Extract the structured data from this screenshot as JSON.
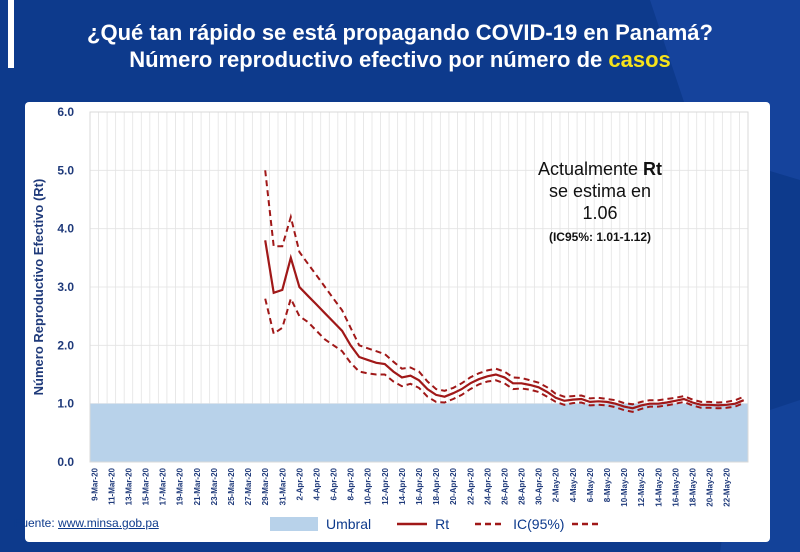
{
  "title_line1": "¿Qué tan rápido se está propagando COVID-19  en Panamá?",
  "title_line2_main": "Número reproductivo efectivo por número de",
  "title_line2_highlight": "casos",
  "annotation": {
    "line1": "Actualmente",
    "bold": "Rt",
    "line2": "se estima en",
    "value": "1.06",
    "ci": "(IC95%: 1.01-1.12)"
  },
  "source_label": "Fuente:",
  "source_link": "www.minsa.gob.pa",
  "colors": {
    "background": "#0d3a8c",
    "umbral": "#b8d2ea",
    "rt": "#a01818",
    "text": "#1f3a7a",
    "highlight": "#f5e21a"
  },
  "chart_data": {
    "type": "line",
    "ylabel": "Número Reproductivo Efectivo (Rt)",
    "ylim": [
      0,
      6
    ],
    "yticks": [
      "0.0",
      "1.0",
      "2.0",
      "3.0",
      "4.0",
      "5.0",
      "6.0"
    ],
    "grid": true,
    "legend_position": "bottom",
    "x_labels": [
      "9-Mar-20",
      "11-Mar-20",
      "13-Mar-20",
      "15-Mar-20",
      "17-Mar-20",
      "19-Mar-20",
      "21-Mar-20",
      "23-Mar-20",
      "25-Mar-20",
      "27-Mar-20",
      "29-Mar-20",
      "31-Mar-20",
      "2-Apr-20",
      "4-Apr-20",
      "6-Apr-20",
      "8-Apr-20",
      "10-Apr-20",
      "12-Apr-20",
      "14-Apr-20",
      "16-Apr-20",
      "18-Apr-20",
      "20-Apr-20",
      "22-Apr-20",
      "24-Apr-20",
      "26-Apr-20",
      "28-Apr-20",
      "30-Apr-20",
      "2-May-20",
      "4-May-20",
      "6-May-20",
      "8-May-20",
      "10-May-20",
      "12-May-20",
      "14-May-20",
      "16-May-20",
      "18-May-20",
      "20-May-20",
      "22-May-20"
    ],
    "umbral": 1.0,
    "rt_points": [
      [
        20,
        3.8
      ],
      [
        21,
        2.9
      ],
      [
        22,
        2.95
      ],
      [
        23,
        3.5
      ],
      [
        24,
        3.0
      ],
      [
        25,
        2.85
      ],
      [
        26,
        2.7
      ],
      [
        27,
        2.55
      ],
      [
        28,
        2.4
      ],
      [
        29,
        2.25
      ],
      [
        30,
        2.0
      ],
      [
        31,
        1.8
      ],
      [
        32,
        1.75
      ],
      [
        33,
        1.7
      ],
      [
        34,
        1.68
      ],
      [
        35,
        1.55
      ],
      [
        36,
        1.45
      ],
      [
        37,
        1.48
      ],
      [
        38,
        1.4
      ],
      [
        39,
        1.25
      ],
      [
        40,
        1.15
      ],
      [
        41,
        1.12
      ],
      [
        42,
        1.18
      ],
      [
        43,
        1.25
      ],
      [
        44,
        1.35
      ],
      [
        45,
        1.42
      ],
      [
        46,
        1.47
      ],
      [
        47,
        1.5
      ],
      [
        48,
        1.45
      ],
      [
        49,
        1.35
      ],
      [
        50,
        1.35
      ],
      [
        51,
        1.32
      ],
      [
        52,
        1.28
      ],
      [
        53,
        1.2
      ],
      [
        54,
        1.1
      ],
      [
        55,
        1.05
      ],
      [
        56,
        1.07
      ],
      [
        57,
        1.08
      ],
      [
        58,
        1.03
      ],
      [
        59,
        1.04
      ],
      [
        60,
        1.03
      ],
      [
        61,
        1.0
      ],
      [
        62,
        0.95
      ],
      [
        63,
        0.92
      ],
      [
        64,
        0.97
      ],
      [
        65,
        1.0
      ],
      [
        66,
        1.0
      ],
      [
        67,
        1.02
      ],
      [
        68,
        1.05
      ],
      [
        69,
        1.08
      ],
      [
        70,
        1.02
      ],
      [
        71,
        0.98
      ],
      [
        72,
        0.98
      ],
      [
        73,
        0.97
      ],
      [
        74,
        0.98
      ],
      [
        75,
        1.0
      ],
      [
        76,
        1.06
      ]
    ],
    "ic_upper": [
      [
        20,
        5.0
      ],
      [
        21,
        3.7
      ],
      [
        22,
        3.7
      ],
      [
        23,
        4.2
      ],
      [
        24,
        3.6
      ],
      [
        25,
        3.4
      ],
      [
        26,
        3.2
      ],
      [
        27,
        3.0
      ],
      [
        28,
        2.8
      ],
      [
        29,
        2.6
      ],
      [
        30,
        2.3
      ],
      [
        31,
        2.0
      ],
      [
        32,
        1.95
      ],
      [
        33,
        1.9
      ],
      [
        34,
        1.85
      ],
      [
        35,
        1.72
      ],
      [
        36,
        1.6
      ],
      [
        37,
        1.62
      ],
      [
        38,
        1.55
      ],
      [
        39,
        1.38
      ],
      [
        40,
        1.25
      ],
      [
        41,
        1.22
      ],
      [
        42,
        1.27
      ],
      [
        43,
        1.35
      ],
      [
        44,
        1.45
      ],
      [
        45,
        1.52
      ],
      [
        46,
        1.57
      ],
      [
        47,
        1.6
      ],
      [
        48,
        1.55
      ],
      [
        49,
        1.45
      ],
      [
        50,
        1.44
      ],
      [
        51,
        1.4
      ],
      [
        52,
        1.36
      ],
      [
        53,
        1.28
      ],
      [
        54,
        1.17
      ],
      [
        55,
        1.12
      ],
      [
        56,
        1.13
      ],
      [
        57,
        1.14
      ],
      [
        58,
        1.09
      ],
      [
        59,
        1.1
      ],
      [
        60,
        1.08
      ],
      [
        61,
        1.06
      ],
      [
        62,
        1.01
      ],
      [
        63,
        0.99
      ],
      [
        64,
        1.03
      ],
      [
        65,
        1.06
      ],
      [
        66,
        1.06
      ],
      [
        67,
        1.08
      ],
      [
        68,
        1.1
      ],
      [
        69,
        1.13
      ],
      [
        70,
        1.07
      ],
      [
        71,
        1.03
      ],
      [
        72,
        1.03
      ],
      [
        73,
        1.02
      ],
      [
        74,
        1.03
      ],
      [
        75,
        1.06
      ],
      [
        76,
        1.12
      ]
    ],
    "ic_lower": [
      [
        20,
        2.8
      ],
      [
        21,
        2.2
      ],
      [
        22,
        2.3
      ],
      [
        23,
        2.8
      ],
      [
        24,
        2.5
      ],
      [
        25,
        2.4
      ],
      [
        26,
        2.25
      ],
      [
        27,
        2.1
      ],
      [
        28,
        2.0
      ],
      [
        29,
        1.9
      ],
      [
        30,
        1.7
      ],
      [
        31,
        1.55
      ],
      [
        32,
        1.52
      ],
      [
        33,
        1.5
      ],
      [
        34,
        1.5
      ],
      [
        35,
        1.38
      ],
      [
        36,
        1.3
      ],
      [
        37,
        1.34
      ],
      [
        38,
        1.27
      ],
      [
        39,
        1.12
      ],
      [
        40,
        1.03
      ],
      [
        41,
        1.02
      ],
      [
        42,
        1.08
      ],
      [
        43,
        1.15
      ],
      [
        44,
        1.25
      ],
      [
        45,
        1.33
      ],
      [
        46,
        1.38
      ],
      [
        47,
        1.4
      ],
      [
        48,
        1.35
      ],
      [
        49,
        1.25
      ],
      [
        50,
        1.26
      ],
      [
        51,
        1.24
      ],
      [
        52,
        1.2
      ],
      [
        53,
        1.12
      ],
      [
        54,
        1.03
      ],
      [
        55,
        0.98
      ],
      [
        56,
        1.01
      ],
      [
        57,
        1.02
      ],
      [
        58,
        0.97
      ],
      [
        59,
        0.98
      ],
      [
        60,
        0.97
      ],
      [
        61,
        0.94
      ],
      [
        62,
        0.89
      ],
      [
        63,
        0.86
      ],
      [
        64,
        0.91
      ],
      [
        65,
        0.95
      ],
      [
        66,
        0.95
      ],
      [
        67,
        0.97
      ],
      [
        68,
        1.0
      ],
      [
        69,
        1.03
      ],
      [
        70,
        0.97
      ],
      [
        71,
        0.93
      ],
      [
        72,
        0.93
      ],
      [
        73,
        0.92
      ],
      [
        74,
        0.93
      ],
      [
        75,
        0.95
      ],
      [
        76,
        1.01
      ]
    ],
    "legend": {
      "umbral": "Umbral",
      "rt": "Rt",
      "ic": "IC(95%)"
    }
  }
}
